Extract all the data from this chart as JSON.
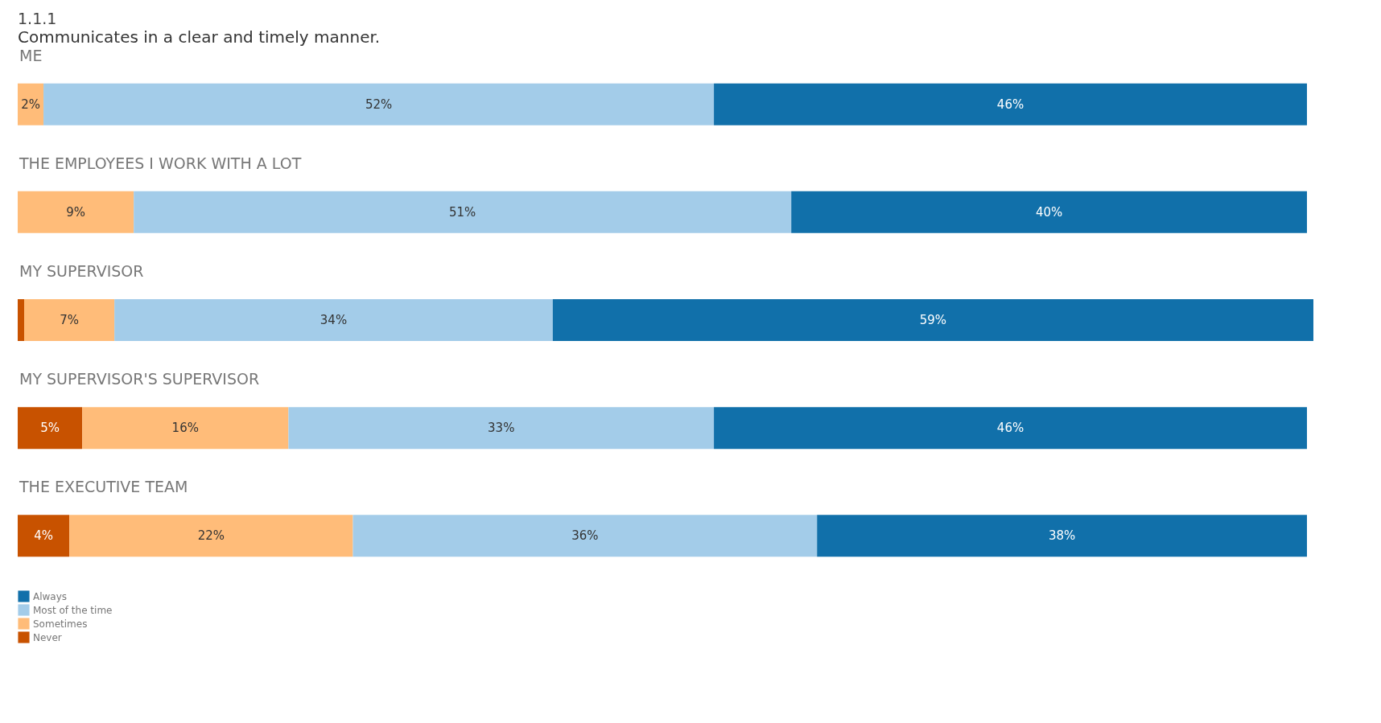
{
  "chart_data": {
    "type": "bar",
    "orientation": "horizontal",
    "stacked": true,
    "title": "1.1.1",
    "subtitle": "Communicates in a clear and timely manner.",
    "categories": [
      "ME",
      "THE EMPLOYEES I WORK WITH A LOT",
      "MY SUPERVISOR",
      "MY SUPERVISOR'S SUPERVISOR",
      "THE EXECUTIVE TEAM"
    ],
    "series": [
      {
        "name": "Never",
        "color": "#c85200",
        "values": [
          null,
          null,
          0.5,
          5,
          4
        ],
        "value_labels": [
          null,
          null,
          null,
          "5%",
          "4%"
        ]
      },
      {
        "name": "Sometimes",
        "color": "#ffbc79",
        "values": [
          2,
          9,
          7,
          16,
          22
        ],
        "value_labels": [
          "2%",
          "9%",
          "7%",
          "16%",
          "22%"
        ]
      },
      {
        "name": "Most of the time",
        "color": "#a3cce9",
        "values": [
          52,
          51,
          34,
          33,
          36
        ],
        "value_labels": [
          "52%",
          "51%",
          "34%",
          "33%",
          "36%"
        ]
      },
      {
        "name": "Always",
        "color": "#1170aa",
        "values": [
          46,
          40,
          59,
          46,
          38
        ],
        "value_labels": [
          "46%",
          "40%",
          "59%",
          "46%",
          "38%"
        ]
      }
    ],
    "legend": "bottom left"
  }
}
